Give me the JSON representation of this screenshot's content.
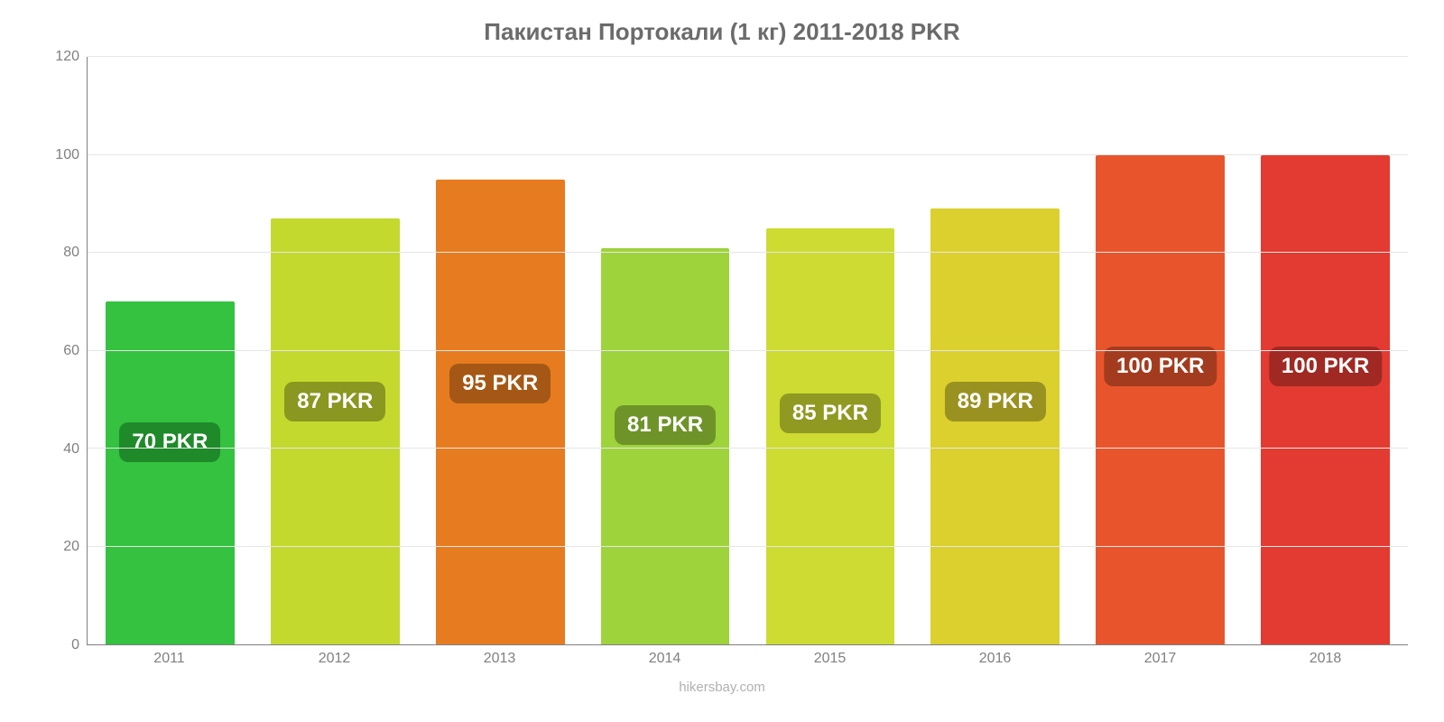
{
  "chart": {
    "type": "bar",
    "title": "Пакистан Портокали (1 кг) 2011-2018 PKR",
    "title_color": "#6b6b6b",
    "title_fontsize": 26,
    "source": "hikersbay.com",
    "source_color": "#b0b0b0",
    "background_color": "#ffffff",
    "grid_color": "#e6e6e6",
    "axis_color": "#808080",
    "tick_color": "#808080",
    "tick_fontsize": 16,
    "ylim": [
      0,
      120
    ],
    "yticks": [
      0,
      20,
      40,
      60,
      80,
      100,
      120
    ],
    "bar_width": 0.78,
    "bar_label_fontsize": 24,
    "bar_label_text_color": "#ffffff",
    "bar_label_radius": 10,
    "categories": [
      "2011",
      "2012",
      "2013",
      "2014",
      "2015",
      "2016",
      "2017",
      "2018"
    ],
    "values": [
      70,
      87,
      95,
      81,
      85,
      89,
      100,
      100
    ],
    "value_labels": [
      "70 PKR",
      "87 PKR",
      "95 PKR",
      "81 PKR",
      "85 PKR",
      "89 PKR",
      "100 PKR",
      "100 PKR"
    ],
    "bar_colors": [
      "#34c240",
      "#c4d92e",
      "#e67c1f",
      "#9ed33c",
      "#cddb32",
      "#dbd02e",
      "#e8552d",
      "#e33b32"
    ],
    "bar_label_bg_colors": [
      "#1f8a2a",
      "#8a9720",
      "#a55815",
      "#6e9429",
      "#909922",
      "#9a9220",
      "#a33c1f",
      "#a02923"
    ],
    "label_offsets_pct": [
      31,
      38,
      41,
      34,
      36,
      38,
      44,
      44
    ]
  }
}
